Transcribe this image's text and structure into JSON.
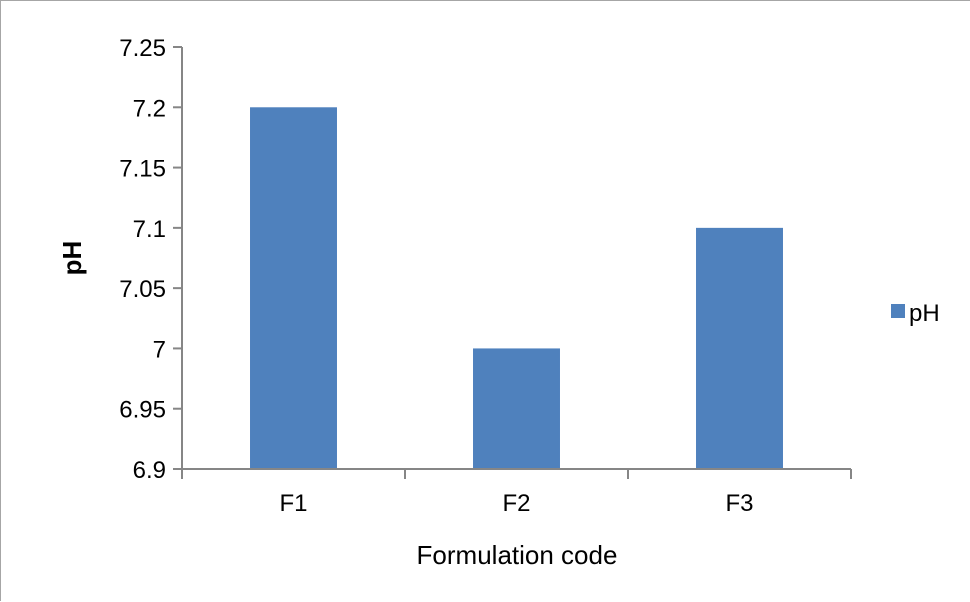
{
  "chart_data": {
    "type": "bar",
    "categories": [
      "F1",
      "F2",
      "F3"
    ],
    "series": [
      {
        "name": "pH",
        "values": [
          7.2,
          7.0,
          7.1
        ],
        "color": "#4f81bd"
      }
    ],
    "title": "",
    "xlabel": "Formulation code",
    "ylabel": "pH",
    "ylim": [
      6.9,
      7.25
    ],
    "yticks": [
      6.9,
      6.95,
      7,
      7.05,
      7.1,
      7.15,
      7.2,
      7.25
    ],
    "ytick_labels": [
      "6.9",
      "6.95",
      "7",
      "7.05",
      "7.1",
      "7.15",
      "7.2",
      "7.25"
    ],
    "grid": false,
    "legend": {
      "position": "right",
      "entries": [
        "pH"
      ]
    }
  }
}
